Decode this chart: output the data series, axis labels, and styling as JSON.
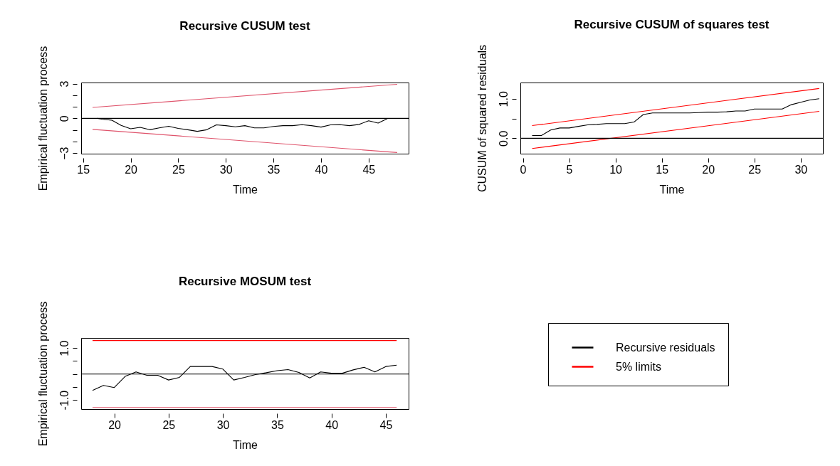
{
  "chart_data": [
    {
      "type": "line",
      "title": "Recursive CUSUM test",
      "xlabel": "Time",
      "ylabel": "Empirical fluctuation process",
      "xlim": [
        14.8,
        49.2
      ],
      "ylim": [
        -3.05,
        3.1
      ],
      "xticks": [
        15,
        20,
        25,
        30,
        35,
        40,
        45
      ],
      "yticks": [
        -3,
        {
          "value": -2,
          "label": null
        },
        {
          "value": -1,
          "label": null
        },
        0,
        {
          "value": 1,
          "label": null
        },
        {
          "value": 2,
          "label": null
        },
        3
      ],
      "grid": false,
      "ref_lines": [
        {
          "axis": "y",
          "value": 0,
          "color": "#000000"
        }
      ],
      "series": [
        {
          "color": "#000000",
          "x": [
            16.5,
            17,
            18,
            19,
            20,
            21,
            22,
            23,
            24,
            25,
            26,
            27,
            28,
            29,
            30,
            31,
            32,
            33,
            34,
            35,
            36,
            37,
            38,
            39,
            40,
            41,
            42,
            43,
            44,
            45,
            46,
            47
          ],
          "values": [
            0,
            -0.07,
            -0.15,
            -0.6,
            -0.9,
            -0.77,
            -0.98,
            -0.82,
            -0.68,
            -0.87,
            -0.98,
            -1.12,
            -0.98,
            -0.56,
            -0.63,
            -0.73,
            -0.63,
            -0.82,
            -0.82,
            -0.7,
            -0.63,
            -0.63,
            -0.54,
            -0.63,
            -0.75,
            -0.56,
            -0.54,
            -0.63,
            -0.52,
            -0.21,
            -0.4,
            0
          ]
        },
        {
          "color": "#df536b",
          "x": [
            16,
            48
          ],
          "values": [
            0.95,
            2.95
          ]
        },
        {
          "color": "#df536b",
          "x": [
            16,
            48
          ],
          "values": [
            -0.95,
            -2.95
          ]
        }
      ]
    },
    {
      "type": "line",
      "title": "Recursive CUSUM of squares test",
      "xlabel": "Time",
      "ylabel": "CUSUM of squared residuals",
      "xlim": [
        -0.27,
        32.4
      ],
      "ylim": [
        -0.39,
        1.41
      ],
      "xticks": [
        0,
        5,
        10,
        15,
        20,
        25,
        30
      ],
      "yticks": [
        {
          "value": 0,
          "label": "0.0"
        },
        {
          "value": 0.5,
          "label": null
        },
        {
          "value": 1,
          "label": "1.0"
        }
      ],
      "grid": false,
      "ref_lines": [
        {
          "axis": "y",
          "value": 0,
          "color": "#000000"
        }
      ],
      "series": [
        {
          "color": "#000000",
          "x": [
            1,
            2,
            3,
            4,
            5,
            6,
            7,
            8,
            9,
            10,
            11,
            12,
            13,
            14,
            15,
            16,
            17,
            18,
            19,
            20,
            21,
            22,
            23,
            24,
            25,
            26,
            27,
            28,
            29,
            30,
            31,
            32
          ],
          "values": [
            0.07,
            0.07,
            0.21,
            0.26,
            0.26,
            0.3,
            0.34,
            0.35,
            0.37,
            0.37,
            0.37,
            0.41,
            0.6,
            0.64,
            0.64,
            0.64,
            0.64,
            0.64,
            0.65,
            0.66,
            0.66,
            0.67,
            0.69,
            0.69,
            0.74,
            0.74,
            0.74,
            0.74,
            0.85,
            0.91,
            0.97,
            1.0
          ]
        },
        {
          "color": "#ff0000",
          "x": [
            1,
            32
          ],
          "values": [
            0.32,
            1.26
          ]
        },
        {
          "color": "#ff0000",
          "x": [
            1,
            32
          ],
          "values": [
            -0.26,
            0.68
          ]
        }
      ]
    },
    {
      "type": "line",
      "title": "Recursive MOSUM test",
      "xlabel": "Time",
      "ylabel": "Empirical fluctuation process",
      "xlim": [
        16.95,
        47.1
      ],
      "ylim": [
        -1.35,
        1.39
      ],
      "xticks": [
        20,
        25,
        30,
        35,
        40,
        45
      ],
      "yticks": [
        {
          "value": -1,
          "label": "-1.0"
        },
        {
          "value": -0.5,
          "label": null
        },
        {
          "value": 0,
          "label": null
        },
        {
          "value": 0.5,
          "label": null
        },
        {
          "value": 1,
          "label": "1.0"
        }
      ],
      "grid": false,
      "legend": "right",
      "ref_lines": [
        {
          "axis": "y",
          "value": 0,
          "color": "#000000"
        }
      ],
      "series": [
        {
          "name": "Recursive residuals",
          "color": "#000000",
          "x": [
            18,
            19,
            20,
            21,
            22,
            23,
            24,
            25,
            26,
            27,
            28,
            29,
            30,
            31,
            32,
            33,
            34,
            35,
            36,
            37,
            38,
            39,
            40,
            41,
            42,
            43,
            44,
            45,
            46
          ],
          "values": [
            -0.63,
            -0.44,
            -0.52,
            -0.09,
            0.08,
            -0.05,
            -0.05,
            -0.23,
            -0.13,
            0.29,
            0.29,
            0.29,
            0.19,
            -0.23,
            -0.13,
            -0.02,
            0.05,
            0.13,
            0.17,
            0.06,
            -0.15,
            0.08,
            0.03,
            0.03,
            0.16,
            0.26,
            0.08,
            0.29,
            0.34
          ]
        },
        {
          "name": "5% limits",
          "color": "#ff0000",
          "x": [
            18,
            46
          ],
          "values": [
            1.29,
            1.29
          ]
        },
        {
          "color": "#df536b",
          "x": [
            18,
            46
          ],
          "values": [
            -1.29,
            -1.29
          ]
        }
      ]
    }
  ]
}
